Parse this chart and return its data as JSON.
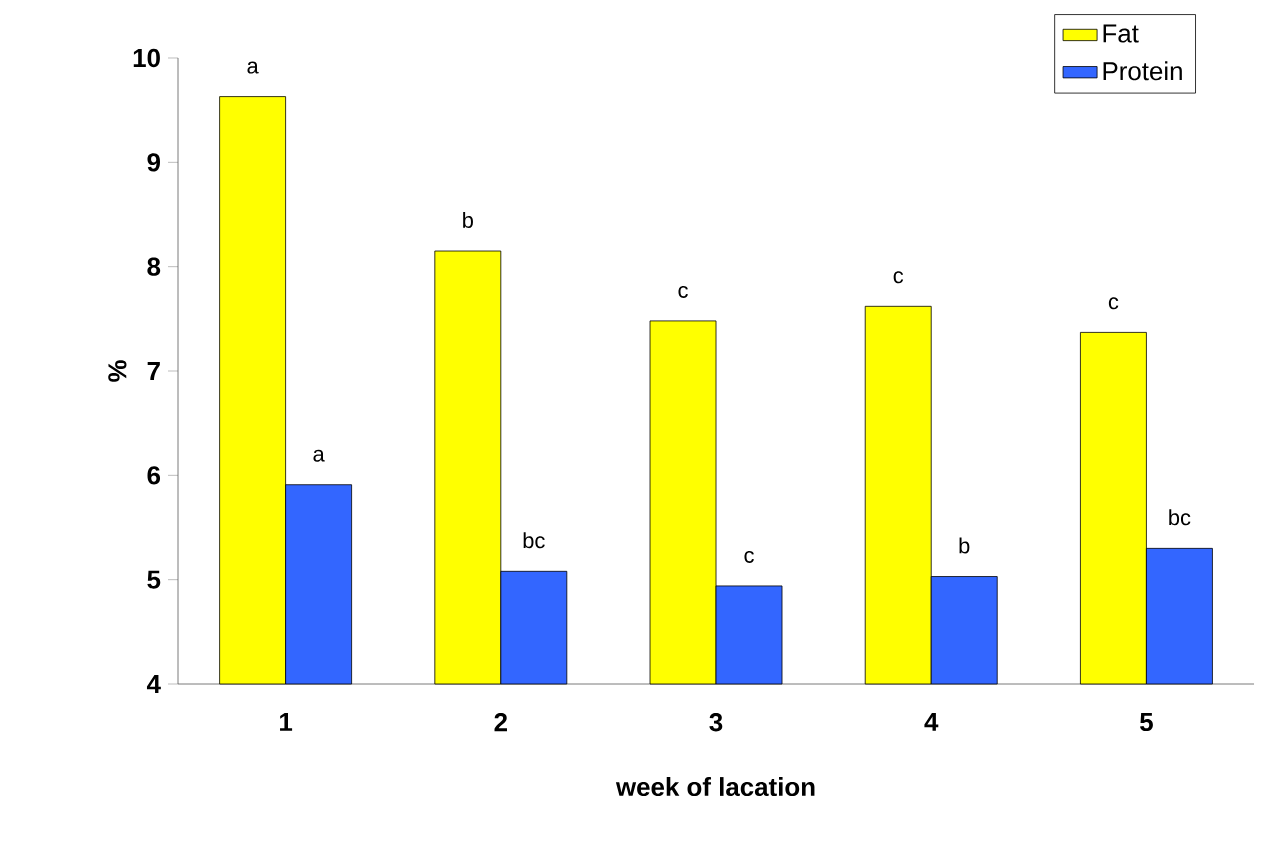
{
  "chart_data": {
    "type": "bar",
    "xlabel": "week of lacation",
    "ylabel": "%",
    "categories": [
      "1",
      "2",
      "3",
      "4",
      "5"
    ],
    "series": [
      {
        "name": "Fat",
        "color": "#ffff00",
        "values": [
          9.63,
          8.15,
          7.48,
          7.62,
          7.37
        ],
        "value_labels": [
          "a",
          "b",
          "c",
          "c",
          "c"
        ]
      },
      {
        "name": "Protein",
        "color": "#3366ff",
        "values": [
          5.91,
          5.08,
          4.94,
          5.03,
          5.3
        ],
        "value_labels": [
          "a",
          "bc",
          "c",
          "b",
          "bc"
        ]
      }
    ],
    "ylim": [
      4,
      10
    ],
    "yticks": [
      4,
      5,
      6,
      7,
      8,
      9,
      10
    ],
    "legend": "top right"
  }
}
